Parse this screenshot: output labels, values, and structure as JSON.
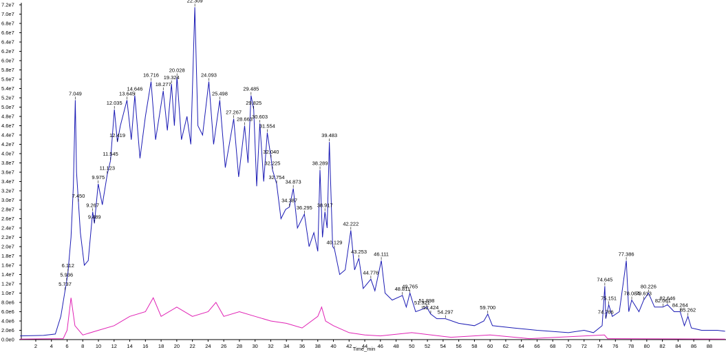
{
  "chart_data": {
    "type": "line",
    "x_label": "Time_min",
    "xlim": [
      0,
      90
    ],
    "ylim": [
      0,
      72000000.0
    ],
    "xticks": [
      2,
      4,
      6,
      8,
      10,
      12,
      14,
      16,
      18,
      20,
      22,
      24,
      26,
      28,
      30,
      32,
      34,
      36,
      38,
      40,
      42,
      44,
      46,
      48,
      50,
      52,
      54,
      56,
      58,
      60,
      62,
      64,
      66,
      68,
      70,
      72,
      74,
      76,
      78,
      80,
      82,
      84,
      86,
      88
    ],
    "yticks": [
      {
        "value": 0,
        "label": "0.0e0"
      },
      {
        "value": 2000000.0,
        "label": "2.0e6"
      },
      {
        "value": 4000000.0,
        "label": "4.0e6"
      },
      {
        "value": 6000000.0,
        "label": "6.0e6"
      },
      {
        "value": 8000000.0,
        "label": "8.0e6"
      },
      {
        "value": 10000000.0,
        "label": "1.0e7"
      },
      {
        "value": 12000000.0,
        "label": "1.2e7"
      },
      {
        "value": 14000000.0,
        "label": "1.4e7"
      },
      {
        "value": 16000000.0,
        "label": "1.6e7"
      },
      {
        "value": 18000000.0,
        "label": "1.8e7"
      },
      {
        "value": 20000000.0,
        "label": "2.0e7"
      },
      {
        "value": 22000000.0,
        "label": "2.2e7"
      },
      {
        "value": 24000000.0,
        "label": "2.4e7"
      },
      {
        "value": 26000000.0,
        "label": "2.6e7"
      },
      {
        "value": 28000000.0,
        "label": "2.8e7"
      },
      {
        "value": 30000000.0,
        "label": "3.0e7"
      },
      {
        "value": 32000000.0,
        "label": "3.2e7"
      },
      {
        "value": 34000000.0,
        "label": "3.4e7"
      },
      {
        "value": 36000000.0,
        "label": "3.6e7"
      },
      {
        "value": 38000000.0,
        "label": "3.8e7"
      },
      {
        "value": 40000000.0,
        "label": "4.0e7"
      },
      {
        "value": 42000000.0,
        "label": "4.2e7"
      },
      {
        "value": 44000000.0,
        "label": "4.4e7"
      },
      {
        "value": 46000000.0,
        "label": "4.6e7"
      },
      {
        "value": 48000000.0,
        "label": "4.8e7"
      },
      {
        "value": 50000000.0,
        "label": "5.0e7"
      },
      {
        "value": 52000000.0,
        "label": "5.2e7"
      },
      {
        "value": 54000000.0,
        "label": "5.4e7"
      },
      {
        "value": 56000000.0,
        "label": "5.6e7"
      },
      {
        "value": 58000000.0,
        "label": "5.8e7"
      },
      {
        "value": 60000000.0,
        "label": "6.0e7"
      },
      {
        "value": 62000000.0,
        "label": "6.2e7"
      },
      {
        "value": 64000000.0,
        "label": "6.4e7"
      },
      {
        "value": 66000000.0,
        "label": "6.6e7"
      },
      {
        "value": 68000000.0,
        "label": "6.8e7"
      },
      {
        "value": 70000000.0,
        "label": "7.0e7"
      },
      {
        "value": 72000000.0,
        "label": "7.2e7"
      }
    ],
    "series": [
      {
        "color": "#1a1ab4",
        "x": [
          0,
          3,
          4.5,
          5.2,
          5.737,
          5.936,
          6.112,
          6.5,
          6.8,
          7.049,
          7.2,
          7.45,
          7.7,
          8.2,
          8.7,
          9.267,
          9.489,
          9.975,
          10.5,
          11.123,
          11.545,
          12.035,
          12.419,
          12.8,
          13.645,
          14.2,
          14.646,
          15.3,
          16,
          16.716,
          17.3,
          18.277,
          18.8,
          19.324,
          19.7,
          20.028,
          20.6,
          21.3,
          21.8,
          22.309,
          22.7,
          23.3,
          24.093,
          24.7,
          25.498,
          26.2,
          27.267,
          27.9,
          28.663,
          29.1,
          29.485,
          29.825,
          30.2,
          30.603,
          31.1,
          31.554,
          32.04,
          32.225,
          32.754,
          33.3,
          33.9,
          34.387,
          34.873,
          35.4,
          36.295,
          36.9,
          37.5,
          38,
          38.289,
          38.6,
          38.917,
          39.2,
          39.483,
          39.9,
          40.129,
          40.8,
          41.5,
          42.222,
          42.7,
          43.253,
          43.8,
          44.776,
          45.3,
          46.111,
          46.6,
          47.5,
          48.811,
          49.3,
          49.765,
          50.5,
          51.321,
          51.898,
          52.424,
          53.2,
          54.297,
          56,
          58,
          59.2,
          59.7,
          60.3,
          63,
          66,
          70,
          72,
          73.2,
          74.3,
          74.645,
          74.766,
          75.151,
          75.6,
          76.5,
          77.386,
          77.7,
          78.084,
          79,
          79.613,
          80.226,
          81,
          82.061,
          82.646,
          83.5,
          84.264,
          84.8,
          85.262,
          85.7,
          87,
          89,
          90
        ],
        "values": [
          800000.0,
          900000.0,
          1200000.0,
          5000000.0,
          10500000.0,
          12500000.0,
          14500000.0,
          22000000.0,
          33000000.0,
          51500000.0,
          36000000.0,
          29500000.0,
          23000000.0,
          16000000.0,
          17000000.0,
          27500000.0,
          25000000.0,
          33500000.0,
          29000000.0,
          35500000.0,
          38500000.0,
          49500000.0,
          42500000.0,
          46000000.0,
          51500000.0,
          43000000.0,
          52500000.0,
          39000000.0,
          48000000.0,
          55500000.0,
          43000000.0,
          53500000.0,
          45000000.0,
          55000000.0,
          46000000.0,
          56500000.0,
          43000000.0,
          48000000.0,
          42000000.0,
          71500000.0,
          46000000.0,
          44000000.0,
          55500000.0,
          42000000.0,
          51500000.0,
          37000000.0,
          47500000.0,
          35000000.0,
          46000000.0,
          38000000.0,
          52500000.0,
          49500000.0,
          33000000.0,
          46500000.0,
          34000000.0,
          44500000.0,
          39000000.0,
          36500000.0,
          33500000.0,
          26000000.0,
          28000000.0,
          28500000.0,
          32500000.0,
          24000000.0,
          27000000.0,
          20000000.0,
          23000000.0,
          19000000.0,
          36500000.0,
          22000000.0,
          27500000.0,
          24000000.0,
          42500000.0,
          20000000.0,
          19500000.0,
          14000000.0,
          15000000.0,
          23500000.0,
          15000000.0,
          17500000.0,
          11000000.0,
          13000000.0,
          10500000.0,
          17000000.0,
          10000000.0,
          8500000.0,
          9500000.0,
          7000000.0,
          10000000.0,
          6000000.0,
          6500000.0,
          7000000.0,
          5500000.0,
          4500000.0,
          4500000.0,
          3500000.0,
          3000000.0,
          4000000.0,
          5500000.0,
          3000000.0,
          2500000.0,
          2000000.0,
          1500000.0,
          2000000.0,
          1500000.0,
          3000000.0,
          11500000.0,
          4500000.0,
          7500000.0,
          5000000.0,
          6000000.0,
          17000000.0,
          6000000.0,
          8500000.0,
          6000000.0,
          8500000.0,
          10000000.0,
          7000000.0,
          7000000.0,
          7500000.0,
          6000000.0,
          6000000.0,
          3000000.0,
          5000000.0,
          2500000.0,
          2000000.0,
          2000000.0,
          1800000.0
        ]
      },
      {
        "color": "#e020b4",
        "x": [
          0,
          5.5,
          6,
          6.5,
          7,
          8,
          10,
          12,
          14,
          16,
          17,
          18,
          20,
          22,
          24,
          25,
          26,
          28,
          30,
          32,
          34,
          36,
          38,
          38.5,
          39,
          40,
          42,
          44,
          46,
          50,
          55,
          60,
          65,
          74.6,
          75,
          90
        ],
        "values": [
          100000.0,
          200000.0,
          2000000.0,
          9000000.0,
          3000000.0,
          1000000.0,
          2000000.0,
          3000000.0,
          5000000.0,
          6000000.0,
          9000000.0,
          5000000.0,
          7000000.0,
          5000000.0,
          6000000.0,
          8000000.0,
          5000000.0,
          6000000.0,
          5000000.0,
          4000000.0,
          3500000.0,
          2500000.0,
          5000000.0,
          7000000.0,
          4000000.0,
          3000000.0,
          1500000.0,
          1000000.0,
          800000.0,
          1500000.0,
          500000.0,
          1000000.0,
          200000.0,
          1000000.0,
          200000.0,
          100000.0
        ]
      }
    ],
    "peaks": {
      "x": [
        5.737,
        5.936,
        6.112,
        7.049,
        7.45,
        9.267,
        9.489,
        9.975,
        11.123,
        11.545,
        12.419,
        12.035,
        13.645,
        14.646,
        16.716,
        18.277,
        19.324,
        20.028,
        22.309,
        24.093,
        25.498,
        27.267,
        28.663,
        29.485,
        29.825,
        30.603,
        31.554,
        32.04,
        32.225,
        32.754,
        34.873,
        34.387,
        36.295,
        38.289,
        39.483,
        38.917,
        42.222,
        40.129,
        43.253,
        46.111,
        44.776,
        48.811,
        49.765,
        51.321,
        51.898,
        52.424,
        54.297,
        59.7,
        74.645,
        74.766,
        75.151,
        77.386,
        78.084,
        80.226,
        79.613,
        82.061,
        82.646,
        84.264,
        85.262
      ],
      "y": [
        10500000.0,
        12500000.0,
        14500000.0,
        51500000.0,
        29500000.0,
        27500000.0,
        25000000.0,
        33500000.0,
        35500000.0,
        38500000.0,
        42500000.0,
        49500000.0,
        51500000.0,
        52500000.0,
        55500000.0,
        53500000.0,
        55000000.0,
        56500000.0,
        71500000.0,
        55500000.0,
        51500000.0,
        47500000.0,
        46000000.0,
        52500000.0,
        49500000.0,
        46500000.0,
        44500000.0,
        39000000.0,
        36500000.0,
        33500000.0,
        32500000.0,
        28500000.0,
        27000000.0,
        36500000.0,
        42500000.0,
        27500000.0,
        23500000.0,
        19500000.0,
        17500000.0,
        17000000.0,
        13000000.0,
        9500000.0,
        10000000.0,
        6500000.0,
        7000000.0,
        5500000.0,
        4500000.0,
        5500000.0,
        11500000.0,
        4500000.0,
        7500000.0,
        17000000.0,
        8500000.0,
        10000000.0,
        8500000.0,
        7000000.0,
        7500000.0,
        6000000.0,
        5000000.0
      ],
      "value_labels": [
        "5.737",
        "5.936",
        "6.112",
        "7.049",
        "7.450",
        "9.267",
        "9.489",
        "9.975",
        "11.123",
        "11.545",
        "12.419",
        "12.035",
        "13.645",
        "14.646",
        "16.716",
        "18.277",
        "19.324",
        "20.028",
        "22.309",
        "24.093",
        "25.498",
        "27.267",
        "28.663",
        "29.485",
        "29.825",
        "30.603",
        "31.554",
        "32.040",
        "32.225",
        "32.754",
        "34.873",
        "34.387",
        "36.295",
        "38.289",
        "39.483",
        "38.917",
        "42.222",
        "40.129",
        "43.253",
        "46.111",
        "44.776",
        "48.811",
        "49.765",
        "51.321",
        "51.898",
        "52.424",
        "54.297",
        "59.700",
        "74.645",
        "74.766",
        "75.151",
        "77.386",
        "78.084",
        "80.226",
        "79.613",
        "82.061",
        "82.646",
        "84.264",
        "85.262"
      ]
    }
  }
}
